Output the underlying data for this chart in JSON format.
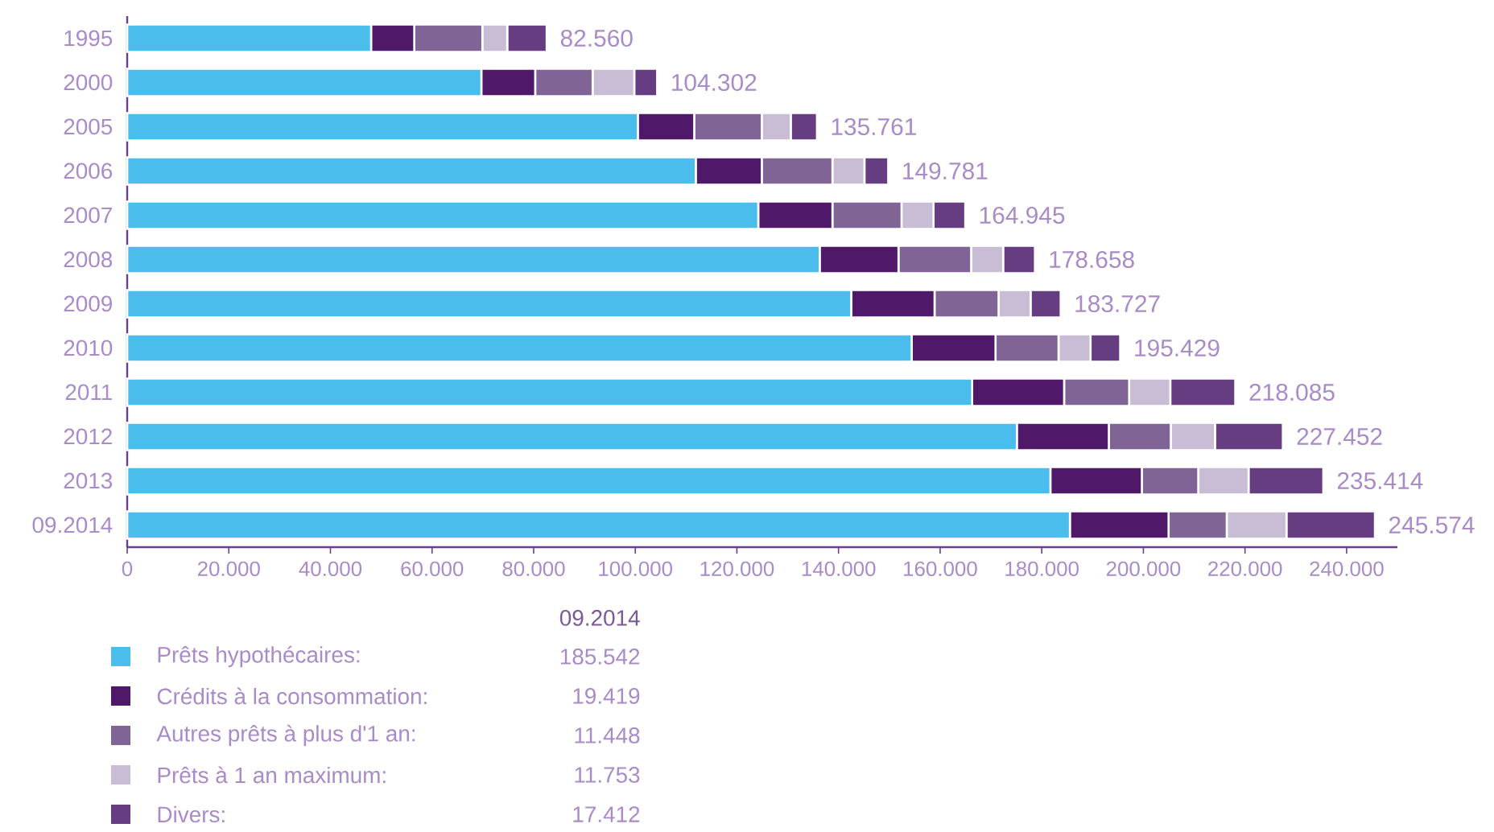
{
  "chart_data": {
    "type": "bar",
    "orientation": "horizontal",
    "stacked": true,
    "categories": [
      "1995",
      "2000",
      "2005",
      "2006",
      "2007",
      "2008",
      "2009",
      "2010",
      "2011",
      "2012",
      "2013",
      "09.2014"
    ],
    "series": [
      {
        "name": "Prêts hypothécaires:",
        "color": "#4bbdec",
        "values": [
          48000,
          69700,
          100500,
          111900,
          124200,
          136300,
          142500,
          154400,
          166300,
          175100,
          181700,
          185542
        ]
      },
      {
        "name": "Crédits à la consommation:",
        "color": "#4f1868",
        "values": [
          8500,
          10600,
          11100,
          13000,
          14600,
          15500,
          16400,
          16500,
          18100,
          18100,
          18000,
          19419
        ]
      },
      {
        "name": "Autres prêts à plus d'1 an:",
        "color": "#806496",
        "values": [
          13400,
          11300,
          13300,
          13900,
          13600,
          14300,
          12600,
          12400,
          12800,
          12200,
          11100,
          11448
        ]
      },
      {
        "name": "Prêts à 1 an maximum:",
        "color": "#c9bdd6",
        "values": [
          4900,
          8200,
          5700,
          6300,
          6300,
          6300,
          6300,
          6300,
          8100,
          8700,
          9900,
          11753
        ]
      },
      {
        "name": "Divers:",
        "color": "#653d80",
        "values": [
          7760,
          4502,
          5161,
          4681,
          6245,
          6258,
          5927,
          5829,
          12785,
          13352,
          14714,
          17412
        ]
      }
    ],
    "totals": [
      "82.560",
      "104.302",
      "135.761",
      "149.781",
      "164.945",
      "178.658",
      "183.727",
      "195.429",
      "218.085",
      "227.452",
      "235.414",
      "245.574"
    ],
    "annotations": [
      "185.542",
      "19.419",
      "11.448",
      "11.753",
      "17.412"
    ],
    "xlim": [
      0,
      250000
    ],
    "xticks": [
      0,
      {
        "value": 20000,
        "label": "20.000"
      },
      {
        "value": 40000,
        "label": "40.000"
      },
      {
        "value": 60000,
        "label": "60.000"
      },
      {
        "value": 80000,
        "label": "80.000"
      },
      {
        "value": 100000,
        "label": "100.000"
      },
      {
        "value": 120000,
        "label": "120.000"
      },
      {
        "value": 140000,
        "label": "140.000"
      },
      {
        "value": 160000,
        "label": "160.000"
      },
      {
        "value": 180000,
        "label": "180.000"
      },
      {
        "value": 200000,
        "label": "200.000"
      },
      {
        "value": 220000,
        "label": "220.000"
      },
      {
        "value": 240000,
        "label": "240.000"
      }
    ],
    "legend": "bottom",
    "legend_title": "09.2014"
  }
}
